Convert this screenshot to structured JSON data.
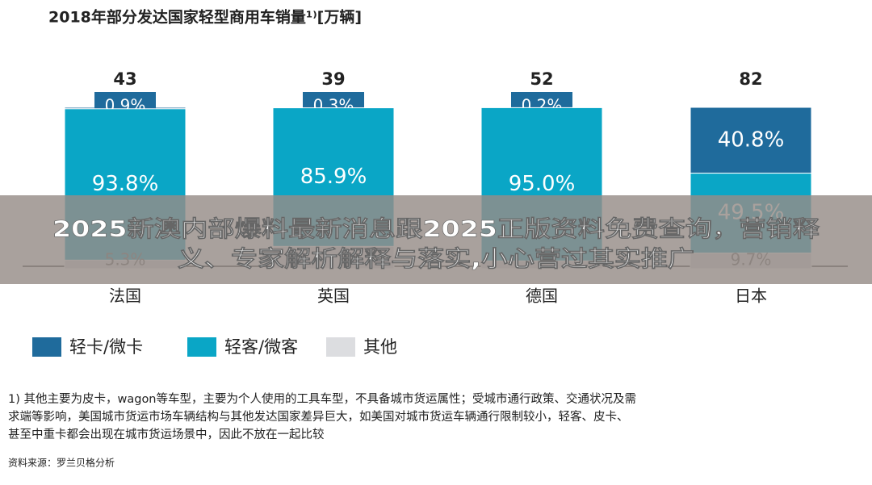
{
  "chart_data": {
    "type": "stacked_bar_100",
    "title": "2018年部分发达国家轻型商用车销量¹⁾[万辆]",
    "categories": [
      "法国",
      "英国",
      "德国",
      "日本"
    ],
    "totals": [
      43,
      39,
      52,
      82
    ],
    "ylim": [
      0,
      100
    ],
    "series": [
      {
        "name": "轻卡/微卡",
        "color": "#1f6b9c",
        "values": [
          0.9,
          0.3,
          0.2,
          40.8
        ],
        "value_labels": [
          "0.9%",
          "0.3%",
          "0.2%",
          "40.8%"
        ]
      },
      {
        "name": "轻客/微客",
        "color": "#0aa6c6",
        "values": [
          93.8,
          85.9,
          95.0,
          49.5
        ],
        "value_labels": [
          "93.8%",
          "85.9%",
          "95.0%",
          "49.5%"
        ]
      },
      {
        "name": "其他",
        "color": "#dcdde0",
        "values": [
          5.3,
          13.8,
          4.8,
          9.7
        ],
        "value_labels": [
          "5.3%",
          null,
          null,
          "9.7%"
        ]
      }
    ],
    "footnote": [
      "1) 其他主要为皮卡，wagon等车型，主要为个人使用的工具车型，不具备城市货运属性；受城市通行政策、交通状况及需",
      "求端等影响，美国城市货运市场车辆结构与其他发达国家差异巨大，如美国对城市货运车辆通行限制较小，轻客、皮卡、",
      "甚至中重卡都会出现在城市货运场景中，因此不放在一起比较"
    ],
    "source": "资料来源：罗兰贝格分析",
    "banner": [
      "2025新澳内部爆料最新消息跟2025正版资料免费查询，营销释",
      "义、专家解析解释与落实,小心营过其实推广"
    ]
  }
}
